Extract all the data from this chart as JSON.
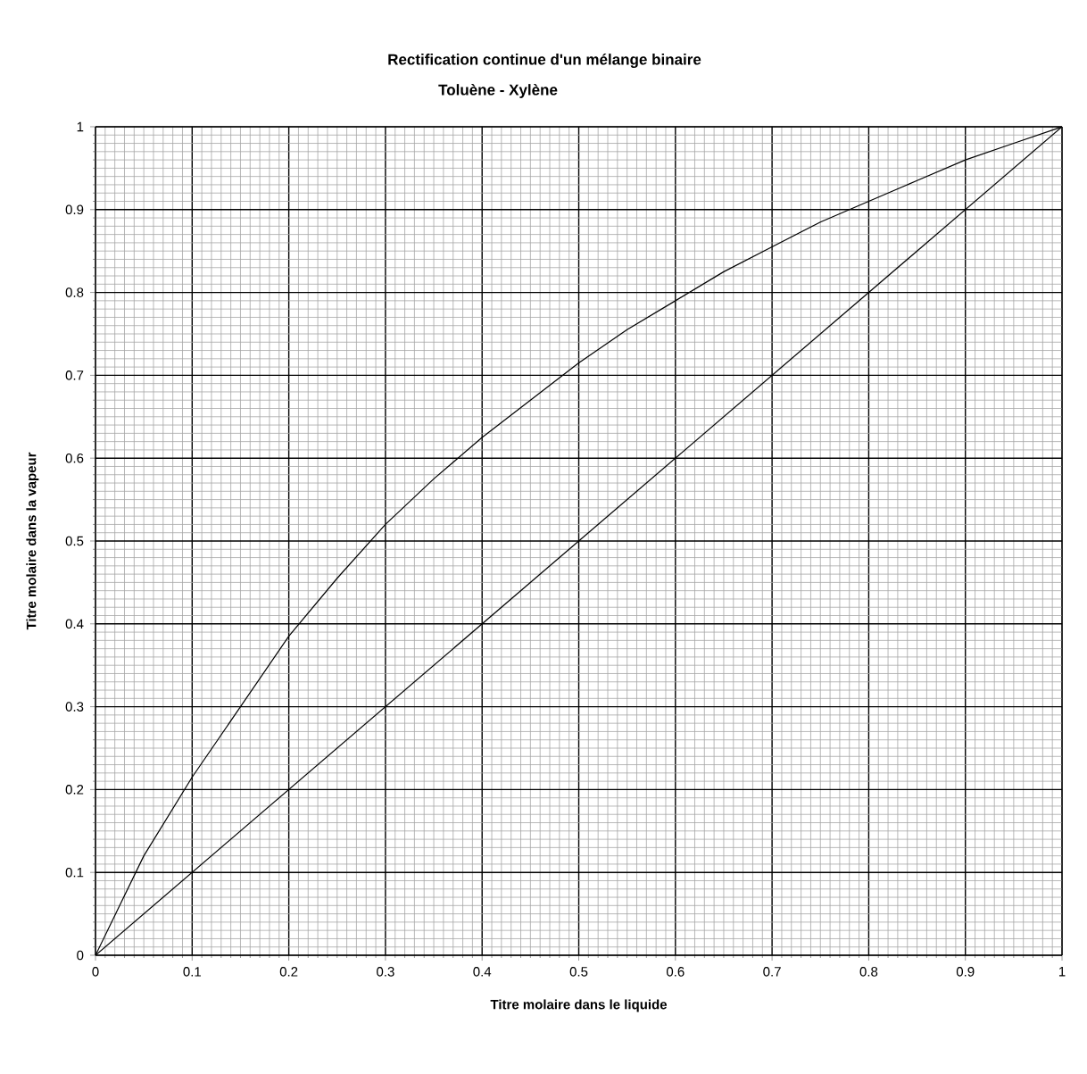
{
  "chart_data": {
    "type": "line",
    "title": "Rectification continue d'un mélange binaire",
    "subtitle": "Toluène - Xylène",
    "xlabel": "Titre molaire dans le liquide",
    "ylabel": "Titre molaire dans la vapeur",
    "xlim": [
      0,
      1
    ],
    "ylim": [
      0,
      1
    ],
    "xticks": [
      0,
      0.1,
      0.2,
      0.3,
      0.4,
      0.5,
      0.6,
      0.7,
      0.8,
      0.9,
      1
    ],
    "yticks": [
      0,
      0.1,
      0.2,
      0.3,
      0.4,
      0.5,
      0.6,
      0.7,
      0.8,
      0.9,
      1
    ],
    "grid": true,
    "legend": false,
    "series": [
      {
        "color": "#000000",
        "x": [
          0,
          0.05,
          0.1,
          0.15,
          0.2,
          0.25,
          0.3,
          0.35,
          0.4,
          0.45,
          0.5,
          0.55,
          0.6,
          0.65,
          0.7,
          0.75,
          0.8,
          0.85,
          0.9,
          0.95,
          1
        ],
        "values": [
          0,
          0.12,
          0.215,
          0.3,
          0.385,
          0.455,
          0.52,
          0.575,
          0.625,
          0.67,
          0.715,
          0.755,
          0.79,
          0.825,
          0.855,
          0.885,
          0.91,
          0.935,
          0.96,
          0.98,
          1
        ]
      },
      {
        "color": "#000000",
        "x": [
          0,
          1
        ],
        "values": [
          0,
          1
        ]
      }
    ]
  }
}
